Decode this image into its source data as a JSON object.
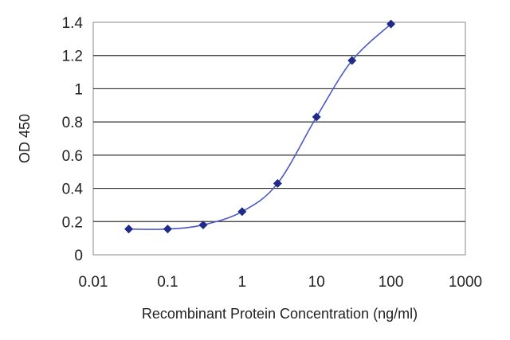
{
  "chart_data": {
    "type": "line",
    "title": "",
    "xlabel": "Recombinant Protein Concentration (ng/ml)",
    "ylabel": "OD 450",
    "x_scale": "log",
    "xlim": [
      0.01,
      1000
    ],
    "ylim": [
      0,
      1.4
    ],
    "x_ticks": [
      "0.01",
      "0.1",
      "1",
      "10",
      "100",
      "1000"
    ],
    "y_ticks": [
      "0",
      "0.2",
      "0.4",
      "0.6",
      "0.8",
      "1",
      "1.2",
      "1.4"
    ],
    "grid": "horizontal",
    "legend": "none",
    "series": [
      {
        "color": "#1f2a8a",
        "x": [
          0.03,
          0.1,
          0.3,
          1,
          3,
          10,
          30,
          100
        ],
        "y": [
          0.155,
          0.155,
          0.18,
          0.26,
          0.43,
          0.83,
          1.17,
          1.39
        ]
      }
    ]
  }
}
